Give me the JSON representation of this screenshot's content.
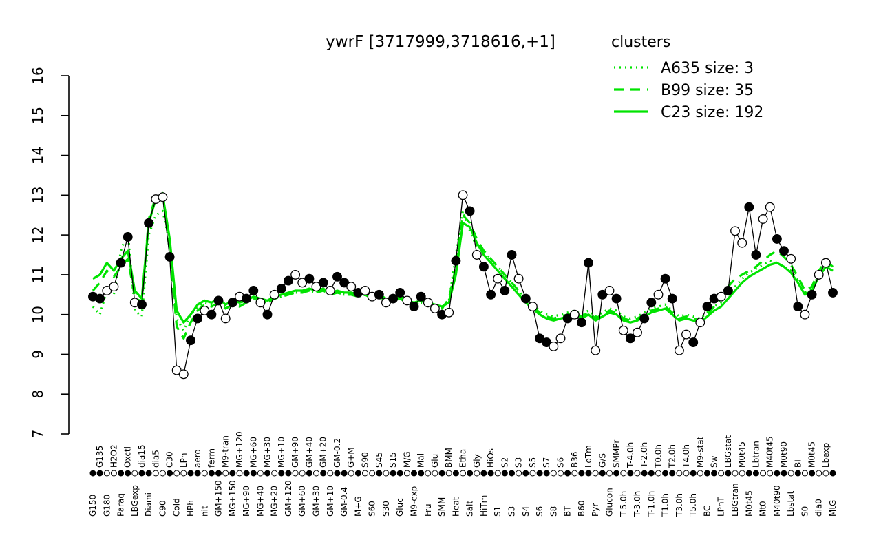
{
  "title": "ywrF [3717999,3718616,+1]",
  "colors": {
    "cluster": "#00e300",
    "profile": "#000000",
    "background": "#ffffff"
  },
  "legend": {
    "title": "clusters",
    "entries": [
      {
        "label": "A635 size: 3",
        "style": "dotted"
      },
      {
        "label": "B99 size: 35",
        "style": "dashed"
      },
      {
        "label": "C23 size: 192",
        "style": "solid"
      }
    ]
  },
  "chart_data": {
    "type": "line",
    "title": "ywrF [3717999,3718616,+1]",
    "ylim": [
      7,
      16
    ],
    "yticks": [
      7,
      8,
      9,
      10,
      11,
      12,
      13,
      14,
      15,
      16
    ],
    "grid": false,
    "legend_position": "top-right",
    "categories": [
      "G150",
      "G135",
      "G180",
      "H2O2",
      "Paraq",
      "Oxctl",
      "LBGexp",
      "dia15",
      "Diami",
      "dia5",
      "C90",
      "C30",
      "Cold",
      "LPh",
      "HPh",
      "aero",
      "nit",
      "ferm",
      "GM+150",
      "M9-tran",
      "MG+150",
      "MG+120",
      "MG+90",
      "MG+60",
      "MG+40",
      "MG+30",
      "MG+20",
      "MG+10",
      "GM+120",
      "GM+90",
      "GM+60",
      "GM+40",
      "GM+30",
      "GM+20",
      "GM+10",
      "GM-0.2",
      "GM-0.4",
      "G+M",
      "M+G",
      "S90",
      "S60",
      "S45",
      "S30",
      "S15",
      "Gluc",
      "M/G",
      "M9-exp",
      "Mal",
      "Fru",
      "Glu",
      "SMM",
      "BMM",
      "Heat",
      "Etha",
      "Salt",
      "Gly",
      "HiTm",
      "HiOs",
      "S1",
      "S2",
      "S3",
      "S3",
      "S4",
      "S5",
      "S6",
      "S7",
      "S8",
      "S6",
      "BT",
      "B36",
      "B60",
      "LoTm",
      "Pyr",
      "G/S",
      "Glucon",
      "SMMPr",
      "T-5.0h",
      "T-4.0h",
      "T-3.0h",
      "T-2.0h",
      "T-1.0h",
      "T0.0h",
      "T1.0h",
      "T2.0h",
      "T3.0h",
      "T4.0h",
      "T5.0h",
      "M9-stat",
      "BC",
      "Sw",
      "LPhT",
      "LBGstat",
      "LBGtran",
      "M0t45",
      "M0t45",
      "Lbtran",
      "Mt0",
      "M40t45",
      "M40t90",
      "M0t90",
      "Lbstat",
      "BI",
      "S0",
      "M0t45",
      "dia0",
      "Lbexp",
      "MtG"
    ],
    "marker_fills": [
      1,
      1,
      0,
      0,
      1,
      1,
      0,
      1,
      1,
      0,
      0,
      1,
      0,
      0,
      1,
      1,
      0,
      1,
      1,
      0,
      1,
      0,
      1,
      1,
      0,
      1,
      0,
      1,
      1,
      0,
      0,
      1,
      0,
      1,
      0,
      1,
      1,
      0,
      1,
      0,
      0,
      1,
      0,
      1,
      1,
      0,
      1,
      1,
      0,
      0,
      1,
      0,
      1,
      0,
      1,
      0,
      1,
      1,
      0,
      1,
      1,
      0,
      1,
      0,
      1,
      1,
      0,
      0,
      1,
      0,
      1,
      1,
      0,
      1,
      0,
      1,
      0,
      1,
      0,
      1,
      1,
      0,
      1,
      1,
      0,
      0,
      1,
      0,
      1,
      1,
      0,
      1,
      0,
      0,
      1,
      1,
      0,
      0,
      1,
      1,
      0,
      1,
      0,
      1,
      0,
      0,
      1
    ],
    "series": [
      {
        "name": "A635",
        "style": "dotted",
        "color": "#00e300",
        "markers": false,
        "values": [
          10.2,
          10.0,
          10.6,
          10.5,
          11.6,
          12.1,
          10.1,
          9.95,
          12.0,
          12.5,
          12.6,
          11.8,
          9.9,
          9.6,
          10.0,
          10.2,
          10.3,
          10.25,
          10.35,
          10.2,
          10.3,
          10.25,
          10.3,
          10.4,
          10.35,
          10.3,
          10.4,
          10.45,
          10.5,
          10.55,
          10.55,
          10.6,
          10.55,
          10.6,
          10.5,
          10.55,
          10.5,
          10.5,
          10.45,
          10.5,
          10.4,
          10.45,
          10.35,
          10.35,
          10.4,
          10.3,
          10.25,
          10.3,
          10.25,
          10.2,
          10.15,
          10.35,
          11.5,
          12.6,
          12.1,
          11.7,
          11.6,
          11.4,
          11.2,
          11.0,
          10.8,
          10.6,
          10.4,
          10.25,
          10.1,
          10.0,
          9.95,
          10.0,
          10.05,
          10.1,
          10.0,
          10.1,
          9.95,
          10.05,
          10.15,
          10.1,
          9.95,
          9.9,
          9.95,
          10.05,
          10.15,
          10.2,
          10.25,
          10.1,
          9.95,
          10.0,
          9.95,
          9.9,
          10.05,
          10.2,
          10.3,
          10.5,
          10.7,
          10.9,
          11.05,
          11.15,
          11.25,
          11.35,
          11.3,
          11.2,
          11.1,
          10.85,
          10.55,
          10.65,
          11.0,
          11.25,
          11.15
        ]
      },
      {
        "name": "B99",
        "style": "dashed",
        "color": "#00e300",
        "markers": false,
        "values": [
          10.6,
          10.8,
          11.1,
          10.95,
          11.2,
          11.4,
          10.45,
          10.3,
          12.4,
          12.95,
          13.05,
          11.6,
          9.7,
          9.4,
          9.8,
          10.1,
          10.25,
          10.2,
          10.3,
          10.15,
          10.25,
          10.2,
          10.3,
          10.4,
          10.35,
          10.3,
          10.4,
          10.45,
          10.5,
          10.55,
          10.55,
          10.6,
          10.55,
          10.6,
          10.5,
          10.55,
          10.5,
          10.5,
          10.45,
          10.5,
          10.4,
          10.45,
          10.35,
          10.35,
          10.4,
          10.3,
          10.25,
          10.3,
          10.25,
          10.2,
          10.15,
          10.4,
          11.2,
          12.5,
          12.3,
          11.9,
          11.6,
          11.4,
          11.2,
          11.0,
          10.8,
          10.6,
          10.4,
          10.2,
          10.05,
          9.95,
          9.9,
          9.95,
          10.0,
          10.05,
          9.95,
          10.05,
          9.9,
          10.0,
          10.1,
          10.05,
          9.9,
          9.85,
          9.9,
          10.0,
          10.1,
          10.15,
          10.2,
          10.05,
          9.9,
          9.95,
          9.9,
          9.85,
          10.0,
          10.2,
          10.4,
          10.7,
          10.9,
          11.0,
          11.1,
          11.2,
          11.35,
          11.5,
          11.6,
          11.45,
          11.25,
          10.95,
          10.6,
          10.7,
          11.1,
          11.35,
          11.2
        ]
      },
      {
        "name": "C23",
        "style": "solid",
        "color": "#00e300",
        "markers": false,
        "values": [
          10.9,
          11.0,
          11.3,
          11.1,
          11.4,
          11.6,
          10.6,
          10.4,
          12.3,
          12.9,
          13.0,
          11.9,
          10.1,
          9.8,
          10.0,
          10.25,
          10.35,
          10.3,
          10.4,
          10.25,
          10.35,
          10.3,
          10.35,
          10.45,
          10.4,
          10.35,
          10.45,
          10.5,
          10.55,
          10.6,
          10.6,
          10.65,
          10.6,
          10.65,
          10.55,
          10.6,
          10.55,
          10.55,
          10.5,
          10.55,
          10.45,
          10.5,
          10.4,
          10.4,
          10.45,
          10.35,
          10.3,
          10.35,
          10.3,
          10.25,
          10.2,
          10.3,
          11.0,
          12.3,
          12.2,
          11.8,
          11.5,
          11.3,
          11.1,
          10.9,
          10.7,
          10.5,
          10.3,
          10.15,
          10.0,
          9.9,
          9.85,
          9.9,
          9.95,
          10.0,
          9.9,
          10.0,
          9.85,
          9.95,
          10.05,
          10.0,
          9.85,
          9.8,
          9.85,
          9.95,
          10.05,
          10.1,
          10.15,
          10.0,
          9.85,
          9.9,
          9.85,
          9.8,
          9.95,
          10.1,
          10.2,
          10.4,
          10.6,
          10.8,
          10.95,
          11.05,
          11.15,
          11.25,
          11.3,
          11.2,
          11.05,
          10.8,
          10.5,
          10.6,
          10.95,
          11.2,
          11.1
        ]
      },
      {
        "name": "ywrF-profile",
        "style": "solid",
        "color": "#000000",
        "markers": true,
        "values": [
          10.45,
          10.4,
          10.6,
          10.7,
          11.3,
          11.95,
          10.3,
          10.25,
          12.3,
          12.9,
          12.95,
          11.45,
          8.6,
          8.5,
          9.35,
          9.9,
          10.1,
          10.0,
          10.35,
          9.9,
          10.3,
          10.45,
          10.4,
          10.6,
          10.3,
          10.0,
          10.5,
          10.65,
          10.85,
          11.0,
          10.8,
          10.9,
          10.7,
          10.8,
          10.6,
          10.95,
          10.8,
          10.7,
          10.55,
          10.6,
          10.45,
          10.5,
          10.3,
          10.4,
          10.55,
          10.35,
          10.2,
          10.45,
          10.3,
          10.15,
          10.0,
          10.05,
          11.35,
          13.0,
          12.6,
          11.5,
          11.2,
          10.5,
          10.9,
          10.6,
          11.5,
          10.9,
          10.4,
          10.2,
          9.4,
          9.3,
          9.2,
          9.4,
          9.9,
          10.0,
          9.8,
          11.3,
          9.1,
          10.5,
          10.6,
          10.4,
          9.6,
          9.4,
          9.55,
          9.9,
          10.3,
          10.5,
          10.9,
          10.4,
          9.1,
          9.5,
          9.3,
          9.8,
          10.2,
          10.4,
          10.45,
          10.6,
          12.1,
          11.8,
          12.7,
          11.5,
          12.4,
          12.7,
          11.9,
          11.6,
          11.4,
          10.2,
          10.0,
          10.5,
          11.0,
          11.3,
          10.55
        ]
      }
    ]
  }
}
